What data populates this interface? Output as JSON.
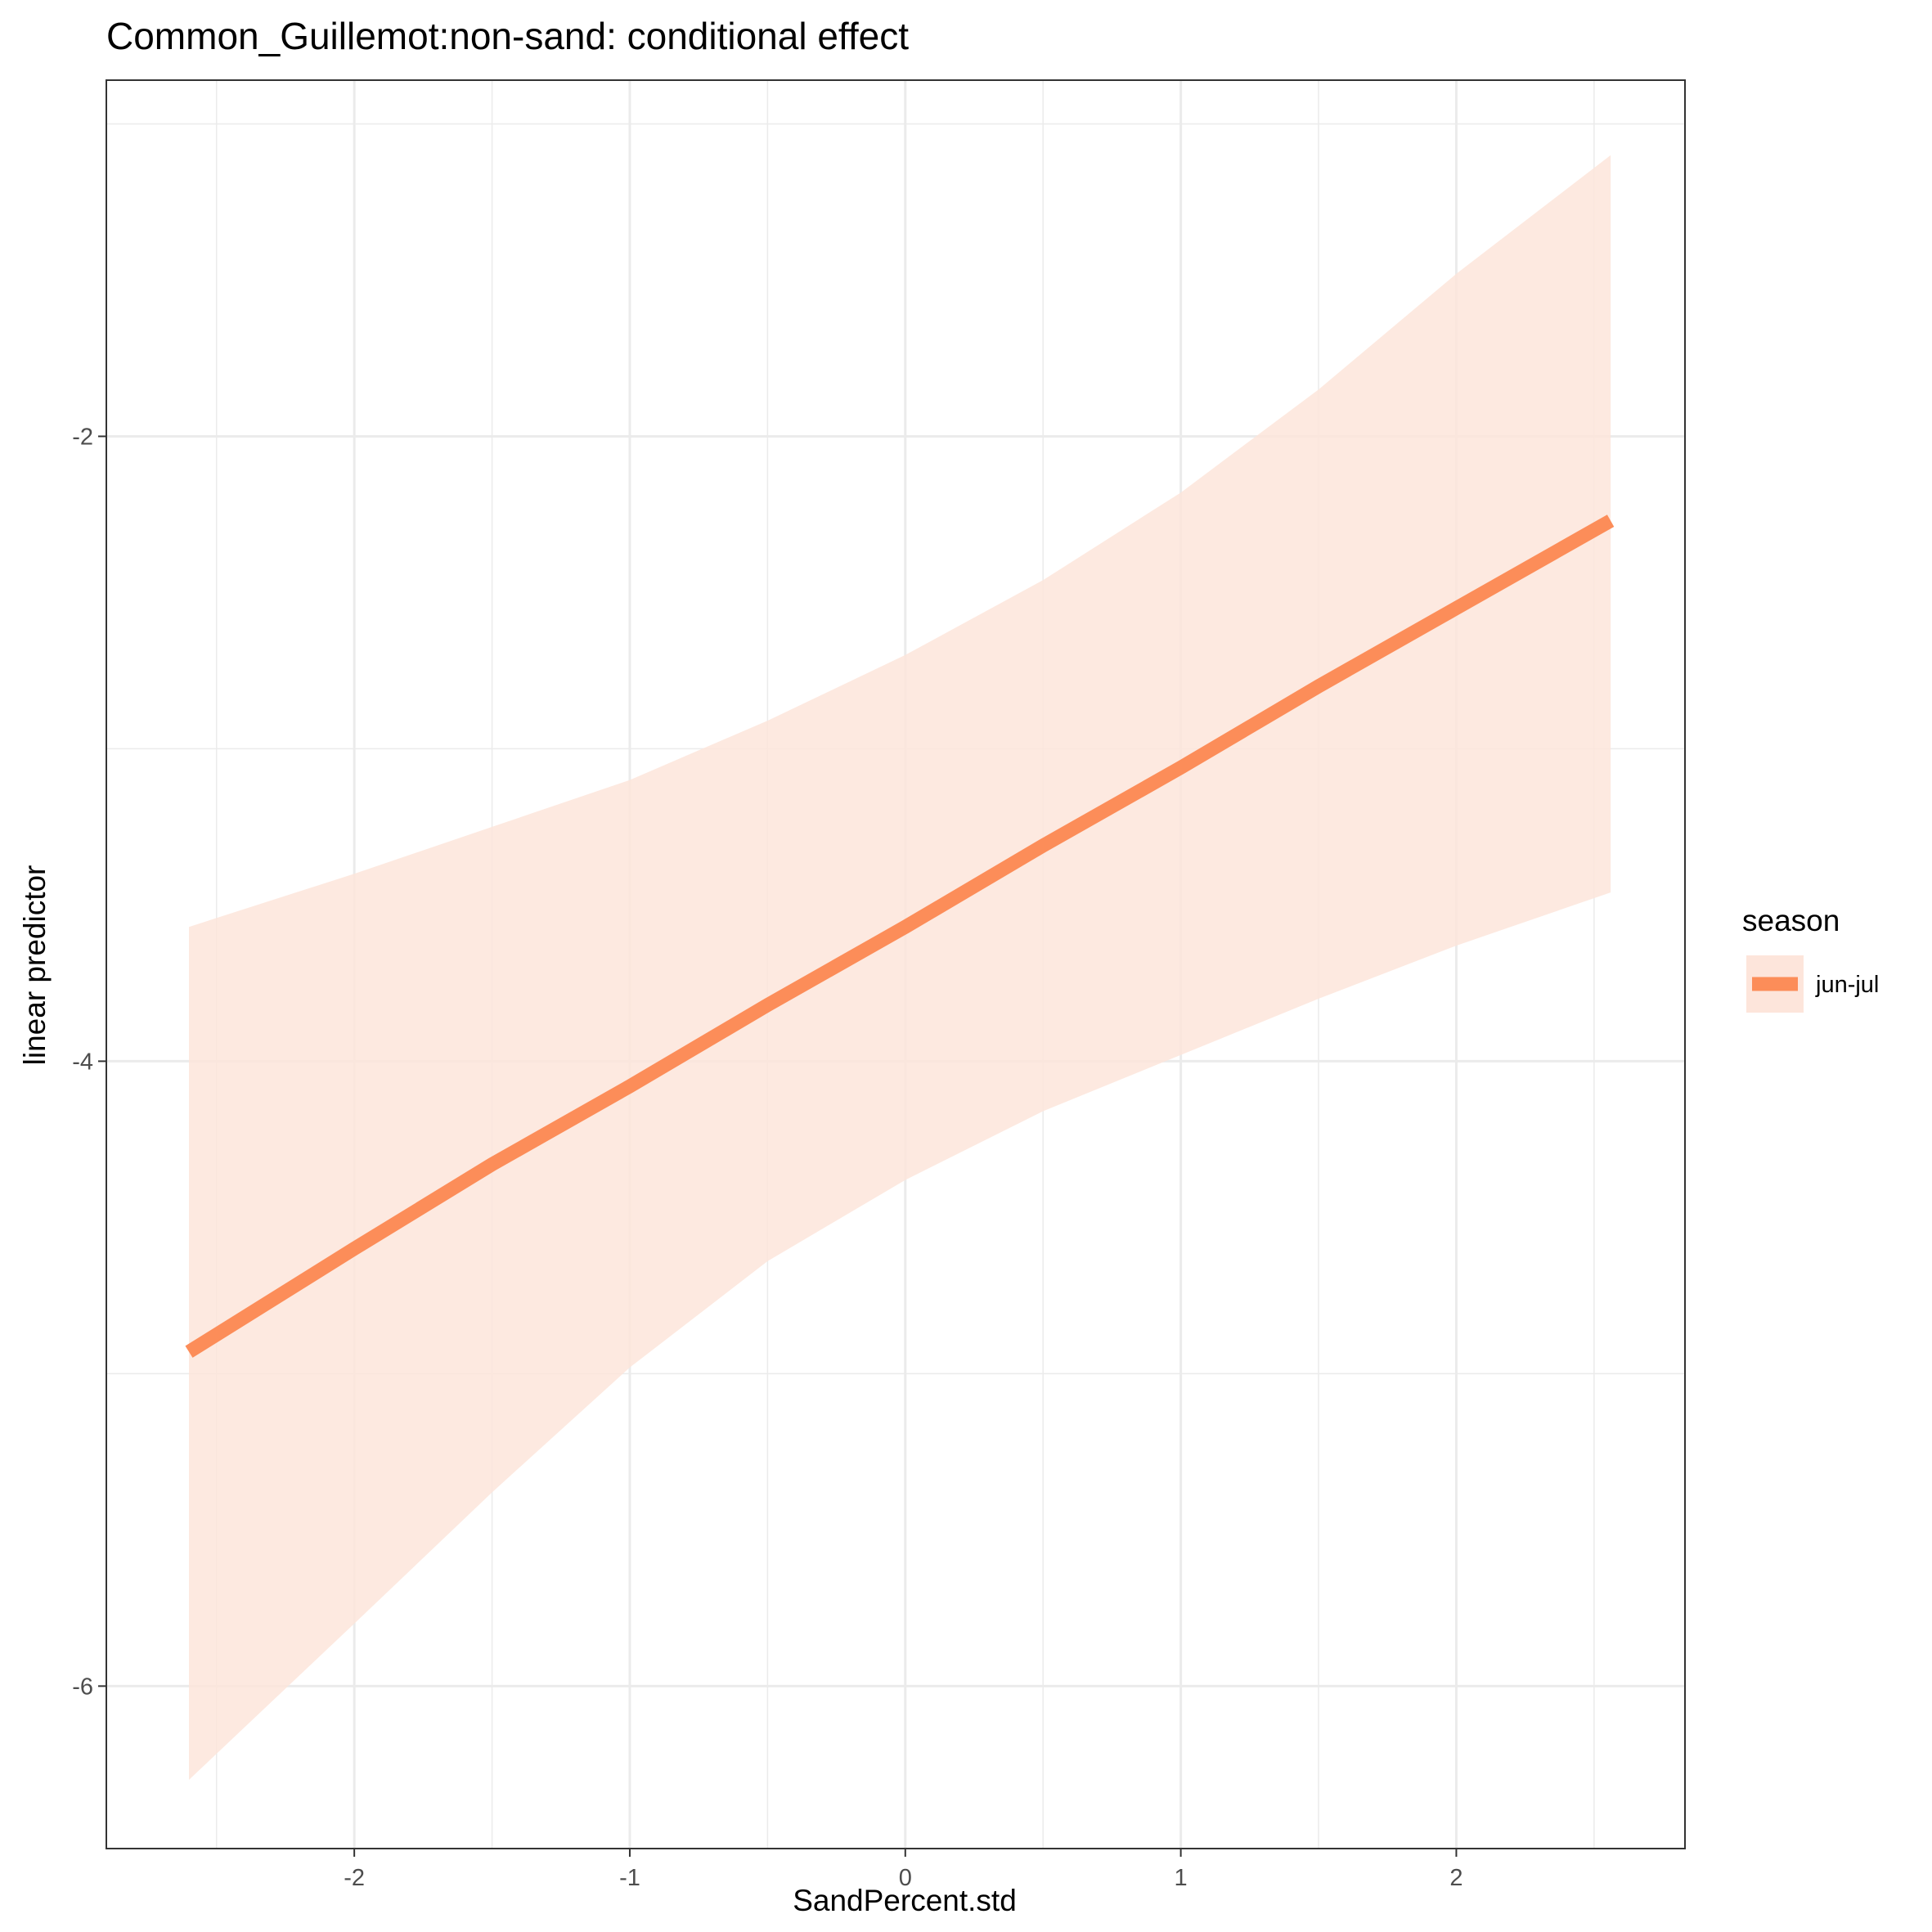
{
  "chart_data": {
    "type": "line",
    "title": "Common_Guillemot:non-sand: conditional effect",
    "xlabel": "SandPercent.std",
    "ylabel": "linear predictor",
    "xlim": [
      -2.9,
      2.83
    ],
    "ylim": [
      -6.52,
      -0.86
    ],
    "x_ticks": [
      -2,
      -1,
      0,
      1,
      2
    ],
    "x_tick_labels": [
      "-2",
      "-1",
      "0",
      "1",
      "2"
    ],
    "y_ticks": [
      -6,
      -4,
      -2
    ],
    "y_tick_labels": [
      "-6",
      "-4",
      "-2"
    ],
    "x_minor_grid": [
      -2.5,
      -1.5,
      -0.5,
      0.5,
      1.5,
      2.5
    ],
    "y_minor_grid": [
      -5,
      -3,
      -1
    ],
    "grid": true,
    "legend": {
      "title": "season",
      "position": "right",
      "entries": [
        "jun-jul"
      ]
    },
    "colors": {
      "line": "#FC8D59",
      "ribbon": "#FDE5DB",
      "grid": "#EBEBEB",
      "panel_border": "#333333"
    },
    "series": [
      {
        "name": "jun-jul",
        "x": [
          -2.6,
          -2.0,
          -1.5,
          -1.0,
          -0.5,
          0.0,
          0.5,
          1.0,
          1.5,
          2.0,
          2.56
        ],
        "y": [
          -4.93,
          -4.6,
          -4.33,
          -4.08,
          -3.82,
          -3.57,
          -3.31,
          -3.06,
          -2.8,
          -2.55,
          -2.27
        ],
        "lower": [
          -6.3,
          -5.8,
          -5.38,
          -4.98,
          -4.64,
          -4.38,
          -4.16,
          -3.98,
          -3.8,
          -3.63,
          -3.46
        ],
        "upper": [
          -3.57,
          -3.4,
          -3.25,
          -3.1,
          -2.91,
          -2.7,
          -2.46,
          -2.18,
          -1.85,
          -1.48,
          -1.1
        ]
      }
    ]
  }
}
